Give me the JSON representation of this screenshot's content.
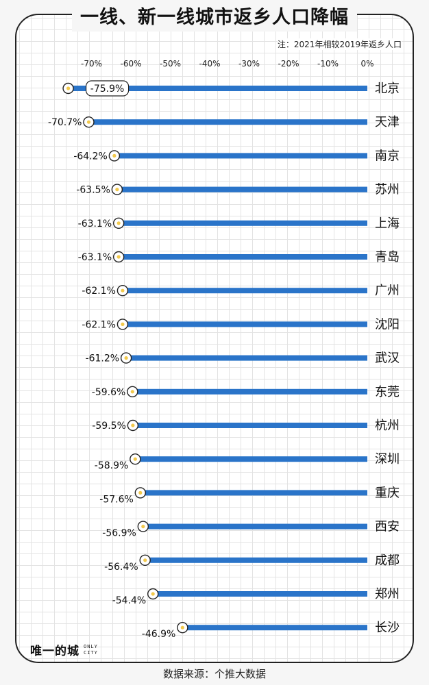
{
  "title": "一线、新一线城市返乡人口降幅",
  "note": "注：2021年相较2019年返乡人口",
  "source": "数据来源：个推大数据",
  "logo": {
    "text": "唯一的城",
    "sub_line1": "ONLY",
    "sub_line2": "CITY"
  },
  "colors": {
    "bar": "#2a74c9",
    "marker_dot": "#f2c94c",
    "marker_ring": "#222222"
  },
  "chart_data": {
    "type": "bar",
    "orientation": "horizontal",
    "title": "一线、新一线城市返乡人口降幅",
    "xlim": [
      -80,
      0
    ],
    "x_ticks": [
      -70,
      -60,
      -50,
      -40,
      -30,
      -20,
      -10,
      0
    ],
    "x_tick_labels": [
      "-70%",
      "-60%",
      "-50%",
      "-40%",
      "-30%",
      "-20%",
      "-10%",
      "0%"
    ],
    "categories": [
      "北京",
      "天津",
      "南京",
      "苏州",
      "上海",
      "青岛",
      "广州",
      "沈阳",
      "武汉",
      "东莞",
      "杭州",
      "深圳",
      "重庆",
      "西安",
      "成都",
      "郑州",
      "长沙"
    ],
    "values": [
      -75.9,
      -70.7,
      -64.2,
      -63.5,
      -63.1,
      -63.1,
      -62.1,
      -62.1,
      -61.2,
      -59.6,
      -59.5,
      -58.9,
      -57.6,
      -56.9,
      -56.4,
      -54.4,
      -46.9
    ],
    "value_labels": [
      "-75.9%",
      "-70.7%",
      "-64.2%",
      "-63.5%",
      "-63.1%",
      "-63.1%",
      "-62.1%",
      "-62.1%",
      "-61.2%",
      "-59.6%",
      "-59.5%",
      "-58.9%",
      "-57.6%",
      "-56.9%",
      "-56.4%",
      "-54.4%",
      "-46.9%"
    ],
    "grid": true
  }
}
